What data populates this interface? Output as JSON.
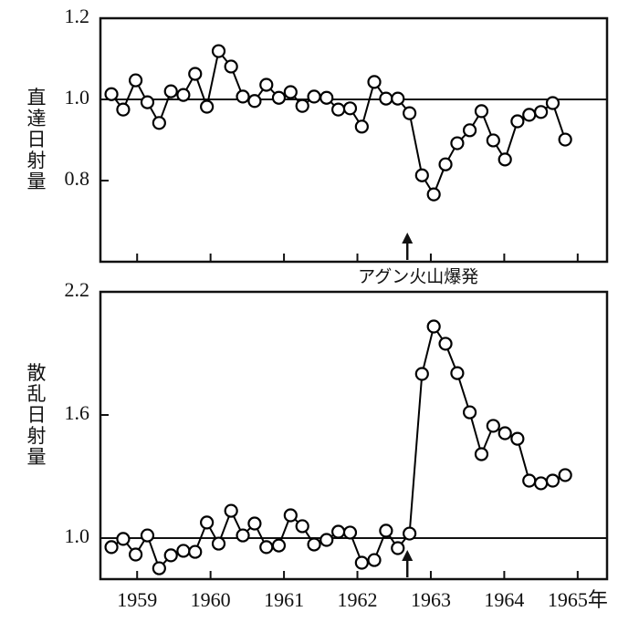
{
  "chart_data": [
    {
      "type": "line",
      "ylabel": "直達日射量",
      "color": "#000000",
      "marker": "circle",
      "xlim": [
        1958.5,
        1965.4
      ],
      "ylim": [
        0.6,
        1.2
      ],
      "yticks": [
        0.8,
        {
          "value": 1,
          "label": "1.0"
        },
        1.2
      ],
      "refline": 1,
      "x": [
        1958.65,
        1958.81,
        1958.98,
        1959.14,
        1959.3,
        1959.46,
        1959.63,
        1959.79,
        1959.95,
        1960.11,
        1960.28,
        1960.44,
        1960.6,
        1960.76,
        1960.93,
        1961.09,
        1961.25,
        1961.41,
        1961.58,
        1961.74,
        1961.9,
        1962.06,
        1962.23,
        1962.39,
        1962.55,
        1962.71,
        1962.88,
        1963.04,
        1963.2,
        1963.36,
        1963.53,
        1963.69,
        1963.85,
        1964.01,
        1964.18,
        1964.34,
        1964.5,
        1964.66,
        1964.83
      ],
      "values": [
        1.013,
        0.975,
        1.047,
        0.993,
        0.942,
        1.02,
        1.011,
        1.063,
        0.982,
        1.119,
        1.081,
        1.007,
        0.996,
        1.036,
        1.004,
        1.018,
        0.984,
        1.007,
        1.004,
        0.975,
        0.978,
        0.933,
        1.043,
        1.002,
        1.002,
        0.966,
        0.813,
        0.766,
        0.84,
        0.892,
        0.924,
        0.971,
        0.899,
        0.852,
        0.946,
        0.962,
        0.969,
        0.991,
        0.901
      ],
      "annotation": {
        "text": "アグン火山爆発",
        "x": 1962.68
      }
    },
    {
      "type": "line",
      "ylabel": "散乱日射量",
      "color": "#000000",
      "marker": "circle",
      "xlim": [
        1958.5,
        1965.4
      ],
      "ylim": [
        0.8,
        2.2
      ],
      "yticks": [
        {
          "value": 1,
          "label": "1.0"
        },
        1.6,
        2.2
      ],
      "refline": 1,
      "xticks": [
        1959,
        1960,
        1961,
        1962,
        1963,
        1964,
        {
          "value": 1965,
          "label": "1965年"
        }
      ],
      "x": [
        1958.65,
        1958.81,
        1958.98,
        1959.14,
        1959.3,
        1959.46,
        1959.63,
        1959.79,
        1959.95,
        1960.11,
        1960.28,
        1960.44,
        1960.6,
        1960.76,
        1960.93,
        1961.09,
        1961.25,
        1961.41,
        1961.58,
        1961.74,
        1961.9,
        1962.06,
        1962.23,
        1962.39,
        1962.55,
        1962.71,
        1962.88,
        1963.04,
        1963.2,
        1963.36,
        1963.53,
        1963.69,
        1963.85,
        1964.01,
        1964.18,
        1964.34,
        1964.5,
        1964.66,
        1964.83
      ],
      "values": [
        0.956,
        0.996,
        0.92,
        1.013,
        0.853,
        0.916,
        0.938,
        0.933,
        1.076,
        0.973,
        1.133,
        1.013,
        1.071,
        0.956,
        0.964,
        1.111,
        1.058,
        0.969,
        0.991,
        1.031,
        1.027,
        0.88,
        0.893,
        1.036,
        0.951,
        1.022,
        1.8,
        2.031,
        1.947,
        1.804,
        1.613,
        1.409,
        1.547,
        1.511,
        1.484,
        1.28,
        1.267,
        1.28,
        1.307
      ]
    }
  ]
}
